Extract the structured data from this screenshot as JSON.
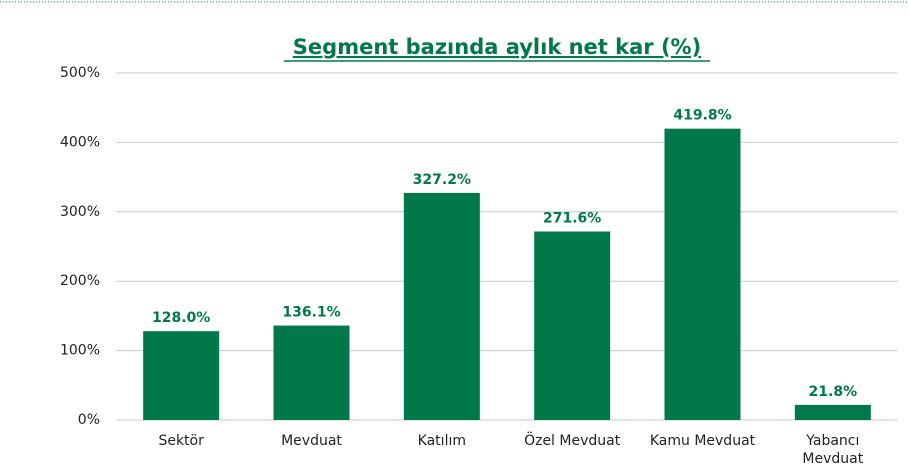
{
  "chart_data": {
    "type": "bar",
    "title": "Segment bazında aylık net kar (%)",
    "categories": [
      "Sektör",
      "Mevduat",
      "Katılım",
      "Özel Mevduat",
      "Kamu Mevduat",
      "Yabancı Mevduat"
    ],
    "values": [
      128.0,
      136.1,
      327.2,
      271.6,
      419.8,
      21.8
    ],
    "value_labels": [
      "128.0%",
      "136.1%",
      "327.2%",
      "271.6%",
      "419.8%",
      "21.8%"
    ],
    "color": "#00784a",
    "ylim": [
      0,
      500
    ],
    "yticks": [
      {
        "value": 0,
        "label": "0%"
      },
      {
        "value": 100,
        "label": "100%"
      },
      {
        "value": 200,
        "label": "200%"
      },
      {
        "value": 300,
        "label": "300%"
      },
      {
        "value": 400,
        "label": "400%"
      },
      {
        "value": 500,
        "label": "500%"
      }
    ],
    "grid": true
  }
}
